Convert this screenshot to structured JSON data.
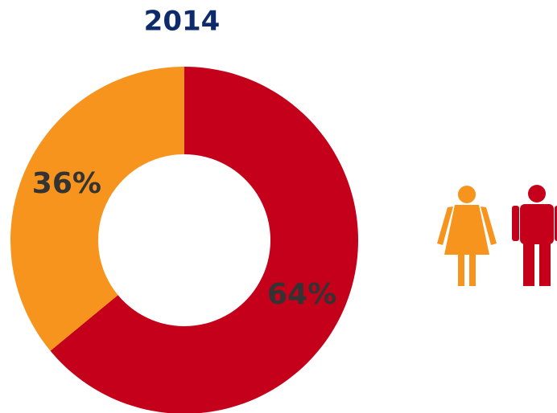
{
  "chart_data": {
    "type": "donut",
    "title": "2014",
    "values": [
      64,
      36
    ],
    "value_labels": [
      "64%",
      "36%"
    ],
    "colors": [
      "#c4001a",
      "#f7941d"
    ]
  }
}
